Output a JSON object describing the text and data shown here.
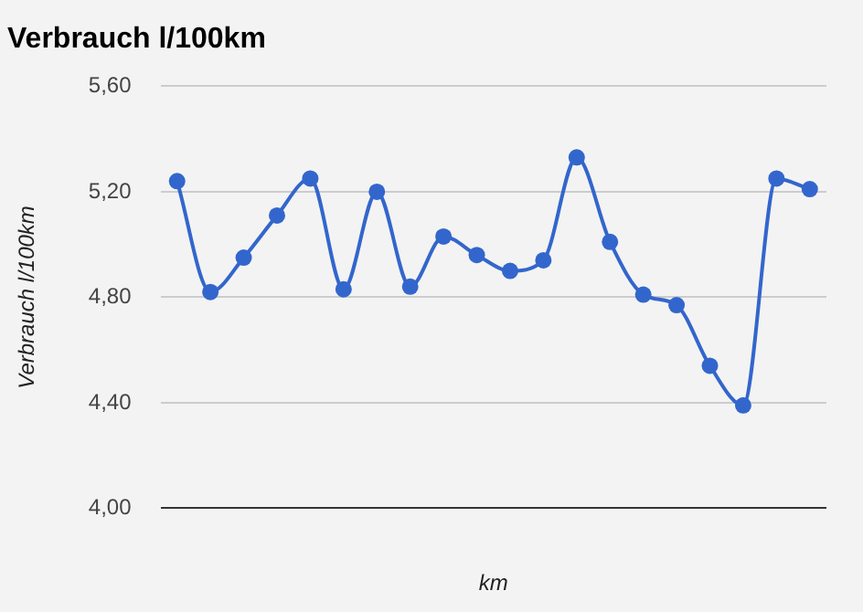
{
  "chart_data": {
    "type": "line",
    "title": "Verbrauch l/100km",
    "xlabel": "km",
    "ylabel": "Verbrauch l/100km",
    "categories": [
      null,
      null,
      null,
      null,
      null,
      null,
      null,
      null,
      null,
      null,
      null,
      null,
      null,
      null,
      null,
      null,
      null,
      null,
      null,
      null
    ],
    "series": [
      {
        "color": "#3366cc",
        "values": [
          5.24,
          4.82,
          4.95,
          5.11,
          5.25,
          4.83,
          5.2,
          4.84,
          5.03,
          4.96,
          4.9,
          4.94,
          5.33,
          5.01,
          4.81,
          4.77,
          4.54,
          4.39,
          5.25,
          5.21
        ]
      }
    ],
    "ylim": [
      4.0,
      5.6
    ],
    "yticks": [
      {
        "value": 4.0,
        "label": "4,00"
      },
      {
        "value": 4.4,
        "label": "4,40"
      },
      {
        "value": 4.8,
        "label": "4,80"
      },
      {
        "value": 5.2,
        "label": "5,20"
      },
      {
        "value": 5.6,
        "label": "5,60"
      }
    ],
    "grid": "y",
    "legend": false,
    "marker": "circle",
    "line_style": "solid"
  }
}
